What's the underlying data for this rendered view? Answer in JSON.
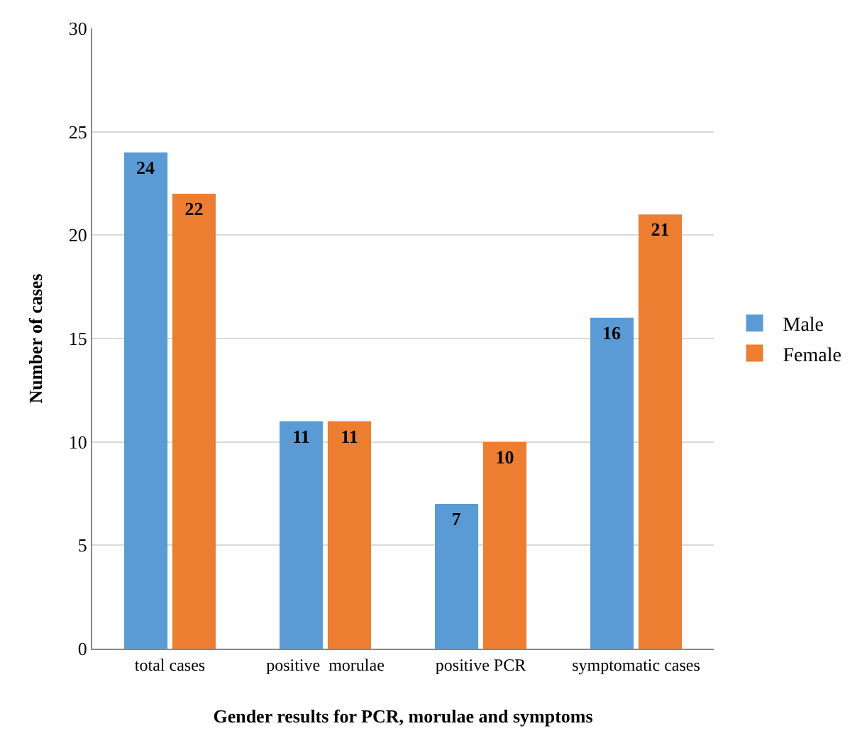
{
  "chart_data": {
    "type": "bar",
    "xlabel": "Gender results for PCR, morulae and symptoms",
    "ylabel": "Number of cases",
    "categories": [
      "total cases",
      "positive  morulae",
      "positive PCR",
      "symptomatic cases"
    ],
    "series": [
      {
        "name": "Male",
        "color": "#5b9bd5",
        "values": [
          24,
          11,
          7,
          16
        ]
      },
      {
        "name": "Female",
        "color": "#ed7d31",
        "values": [
          22,
          11,
          10,
          21
        ]
      }
    ],
    "ylim": [
      0,
      30
    ],
    "yticks": [
      0,
      5,
      10,
      15,
      20,
      25,
      30
    ],
    "grid": "y",
    "legend": "right",
    "data_labels": true
  }
}
